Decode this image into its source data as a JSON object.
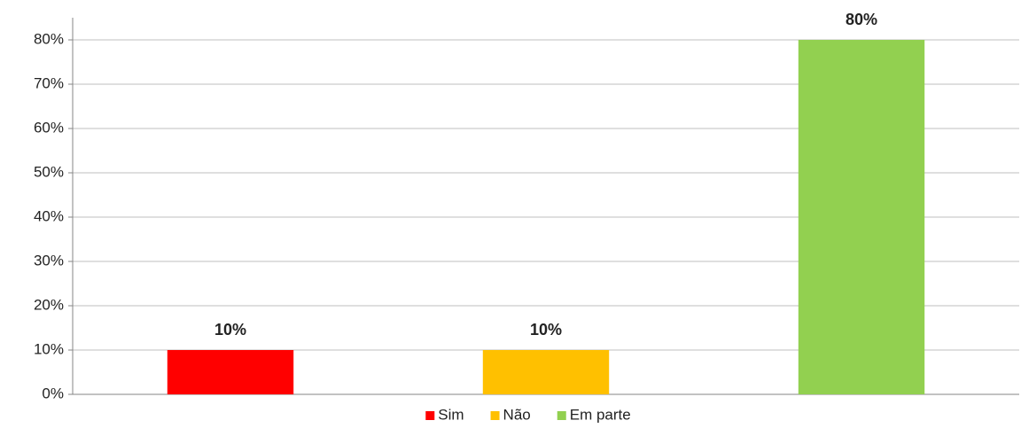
{
  "chart_data": {
    "type": "bar",
    "series": [
      {
        "name": "Sim",
        "color": "#ff0000",
        "values": [
          10
        ],
        "value_labels": [
          "10%"
        ]
      },
      {
        "name": "Não",
        "color": "#ffc000",
        "values": [
          10
        ],
        "value_labels": [
          "10%"
        ]
      },
      {
        "name": "Em parte",
        "color": "#92d050",
        "values": [
          80
        ],
        "value_labels": [
          "80%"
        ]
      }
    ],
    "ylim": [
      0,
      85
    ],
    "yticks": [
      {
        "value": 0,
        "label": "0%"
      },
      {
        "value": 10,
        "label": "10%"
      },
      {
        "value": 20,
        "label": "20%"
      },
      {
        "value": 30,
        "label": "30%"
      },
      {
        "value": 40,
        "label": "40%"
      },
      {
        "value": 50,
        "label": "50%"
      },
      {
        "value": 60,
        "label": "60%"
      },
      {
        "value": 70,
        "label": "70%"
      },
      {
        "value": 80,
        "label": "80%"
      }
    ],
    "grid": true,
    "legend": "bottom"
  }
}
